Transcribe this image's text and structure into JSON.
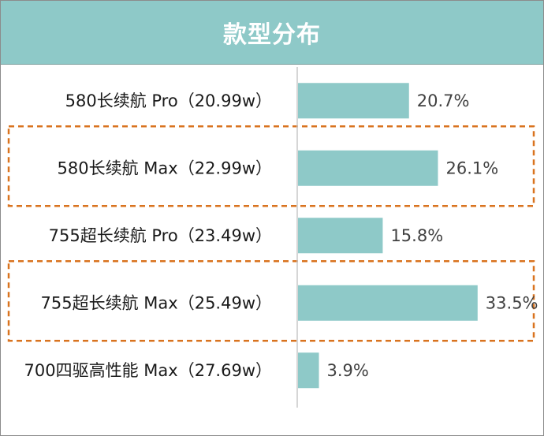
{
  "title": "款型分布",
  "colors": {
    "header_bg": "#8ec9c8",
    "bar": "#8ec9c8",
    "highlight_border": "#d9731f",
    "axis": "#c8c8c8"
  },
  "chart_data": {
    "type": "bar",
    "orientation": "horizontal",
    "title": "款型分布",
    "unit": "%",
    "categories": [
      "580长续航 Pro（20.99w）",
      "580长续航 Max（22.99w）",
      "755超长续航 Pro（23.49w）",
      "755超长续航 Max（25.49w）",
      "700四驱高性能 Max（27.69w）"
    ],
    "values": [
      20.7,
      26.1,
      15.8,
      33.5,
      3.9
    ],
    "value_labels": [
      "20.7%",
      "26.1%",
      "15.8%",
      "33.5%",
      "3.9%"
    ],
    "highlighted": [
      false,
      true,
      false,
      true,
      false
    ],
    "xlim": [
      0,
      45
    ],
    "grid": false,
    "legend": "none"
  }
}
